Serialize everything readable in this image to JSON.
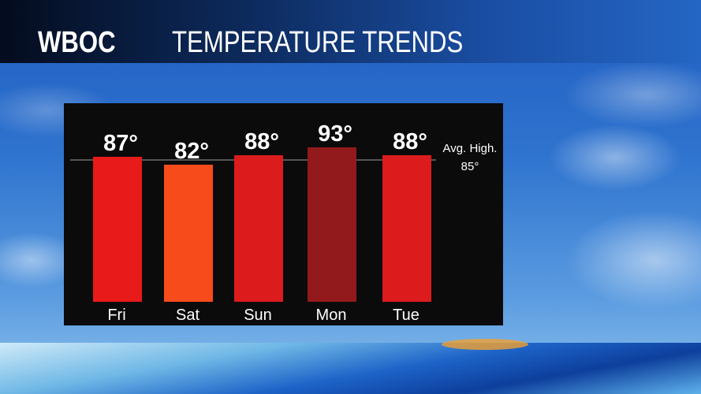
{
  "header": {
    "logo": "WBOC",
    "title": "TEMPERATURE TRENDS"
  },
  "chart_data": {
    "type": "bar",
    "title": "TEMPERATURE TRENDS",
    "categories": [
      "Fri",
      "Sat",
      "Sun",
      "Mon",
      "Tue"
    ],
    "values": [
      87,
      82,
      88,
      93,
      88
    ],
    "value_labels": [
      "87°",
      "82°",
      "88°",
      "93°",
      "88°"
    ],
    "colors": [
      "#e81a1a",
      "#f74b1c",
      "#dc1c1c",
      "#921a1c",
      "#dc1c1c"
    ],
    "reference_line": {
      "value": 85,
      "label": "Avg. High.",
      "value_label": "85°",
      "color": "#555555"
    },
    "grid": false,
    "units": "°F"
  }
}
